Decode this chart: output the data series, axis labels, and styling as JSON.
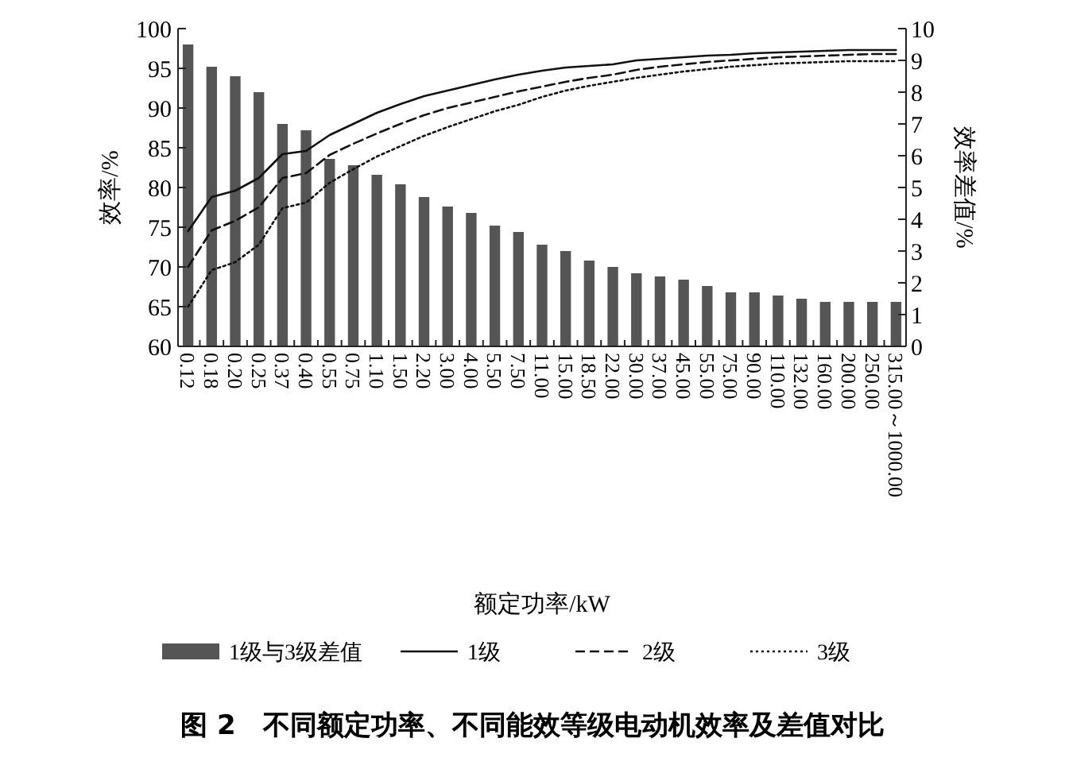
{
  "chart_data": {
    "type": "bar",
    "title": "图 2　不同额定功率、不同能效等级电动机效率及差值对比",
    "xlabel": "额定功率/kW",
    "ylabel": "效率/%",
    "y2label": "效率差值/%",
    "categories": [
      "0.12",
      "0.18",
      "0.20",
      "0.25",
      "0.37",
      "0.40",
      "0.55",
      "0.75",
      "1.10",
      "1.50",
      "2.20",
      "3.00",
      "4.00",
      "5.50",
      "7.50",
      "11.00",
      "15.00",
      "18.50",
      "22.00",
      "30.00",
      "37.00",
      "45.00",
      "55.00",
      "75.00",
      "90.00",
      "110.00",
      "132.00",
      "160.00",
      "200.00",
      "250.00",
      "315.00～1000.00"
    ],
    "series": [
      {
        "name": "1级与3级差值",
        "axis": "y2",
        "color": "#555555",
        "values": [
          9.5,
          8.8,
          8.5,
          8.0,
          7.0,
          6.8,
          5.9,
          5.7,
          5.4,
          5.1,
          4.7,
          4.4,
          4.2,
          3.8,
          3.6,
          3.2,
          3.0,
          2.7,
          2.5,
          2.3,
          2.2,
          2.1,
          1.9,
          1.7,
          1.7,
          1.6,
          1.5,
          1.4,
          1.4,
          1.4,
          1.4
        ]
      },
      {
        "name": "1级",
        "type": "line",
        "line_style": "solid",
        "color": "#111111",
        "values": [
          74.5,
          78.8,
          79.6,
          81.2,
          84.2,
          84.6,
          86.6,
          88.0,
          89.4,
          90.5,
          91.5,
          92.2,
          92.9,
          93.6,
          94.2,
          94.7,
          95.1,
          95.3,
          95.5,
          96.0,
          96.2,
          96.4,
          96.6,
          96.7,
          96.9,
          97.0,
          97.1,
          97.2,
          97.3,
          97.3,
          97.3
        ]
      },
      {
        "name": "2级",
        "type": "line",
        "line_style": "dashed",
        "color": "#111111",
        "values": [
          70,
          74.6,
          75.8,
          77.5,
          81.2,
          81.8,
          84.1,
          85.5,
          86.8,
          88.0,
          89.1,
          90.0,
          90.7,
          91.4,
          92.1,
          92.7,
          93.3,
          93.8,
          94.2,
          94.8,
          95.2,
          95.5,
          95.8,
          96.0,
          96.2,
          96.4,
          96.5,
          96.6,
          96.7,
          96.8,
          96.8
        ]
      },
      {
        "name": "3级",
        "type": "line",
        "line_style": "dotted",
        "color": "#111111",
        "values": [
          65,
          69.6,
          70.6,
          72.8,
          77.4,
          78.1,
          80.6,
          82.3,
          83.9,
          85.2,
          86.5,
          87.6,
          88.6,
          89.6,
          90.4,
          91.4,
          92.2,
          92.8,
          93.3,
          93.8,
          94.2,
          94.6,
          94.9,
          95.2,
          95.4,
          95.6,
          95.7,
          95.8,
          95.9,
          95.9,
          95.9
        ]
      }
    ],
    "ylim": [
      60,
      100
    ],
    "yticks": [
      60,
      65,
      70,
      75,
      80,
      85,
      90,
      95,
      100
    ],
    "y2lim": [
      0,
      10
    ],
    "y2ticks": [
      0,
      1,
      2,
      3,
      4,
      5,
      6,
      7,
      8,
      9,
      10
    ],
    "legend": "bottom",
    "marker": "none"
  }
}
